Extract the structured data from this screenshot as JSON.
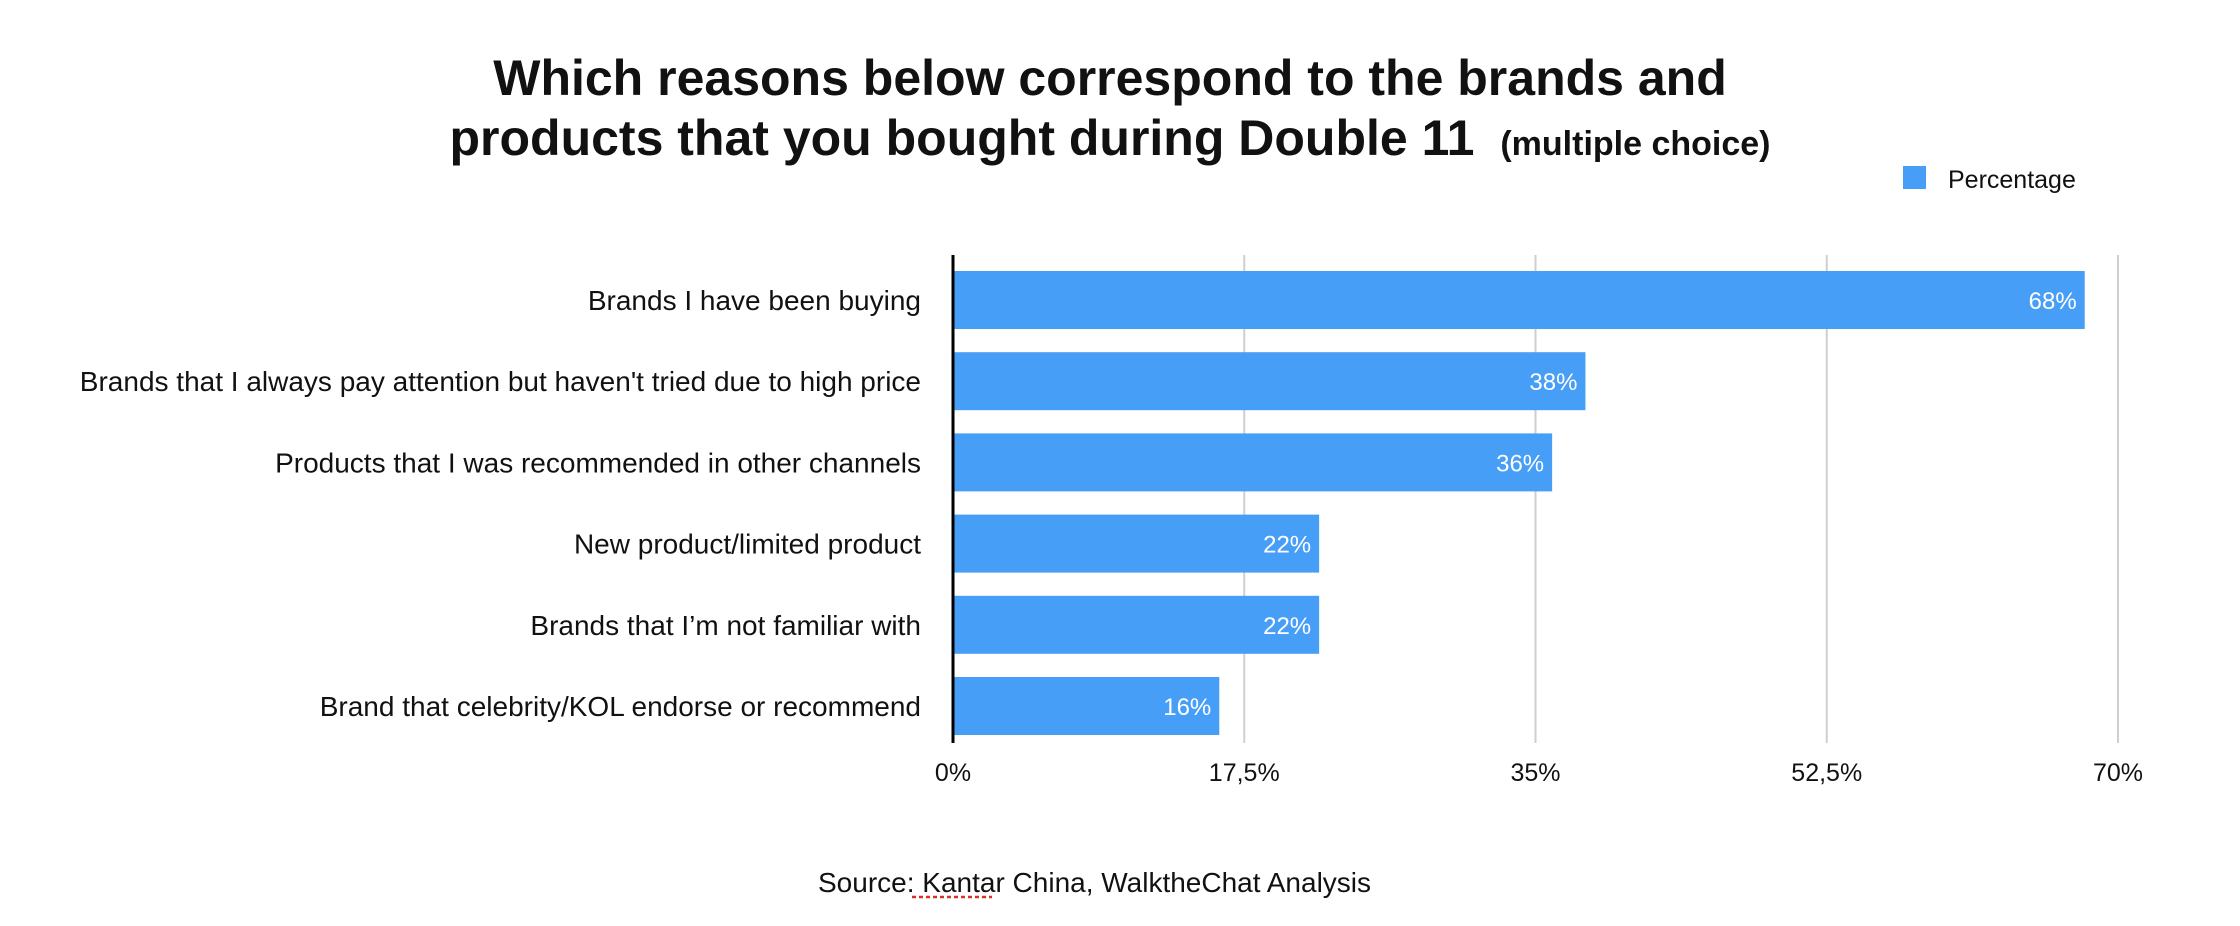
{
  "colors": {
    "bar": "#479ef7",
    "grid": "#cfcfcf",
    "text": "#111111",
    "data_label": "#ffffff",
    "spellcheck_underline": "#d93025"
  },
  "chart_data": {
    "type": "bar",
    "orientation": "horizontal",
    "title_line1": "Which reasons below correspond to the brands and",
    "title_line2": "products that you bought during Double 11",
    "title_suffix": "(multiple choice)",
    "categories": [
      "Brands I have been buying",
      "Brands that I always pay attention but haven't tried due to high price",
      "Products that I was recommended in other channels",
      "New product/limited product",
      "Brands that I’m not familiar with",
      "Brand that celebrity/KOL endorse or recommend"
    ],
    "series": [
      {
        "name": "Percentage",
        "values": [
          68,
          38,
          36,
          22,
          22,
          16
        ],
        "labels": [
          "68%",
          "38%",
          "36%",
          "22%",
          "22%",
          "16%"
        ]
      }
    ],
    "xlim": [
      0,
      70
    ],
    "x_ticks": [
      0,
      17.5,
      35,
      52.5,
      70
    ],
    "x_tick_labels": [
      "0%",
      "17,5%",
      "35%",
      "52,5%",
      "70%"
    ],
    "grid": true,
    "legend_position": "top-right",
    "source": "Source: Kantar China, WalktheChat Analysis"
  }
}
